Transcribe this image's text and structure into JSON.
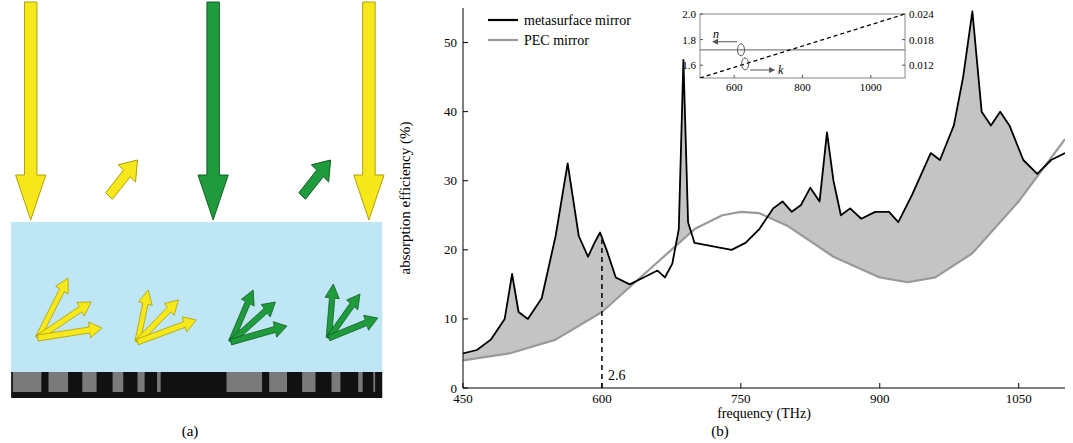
{
  "diagram": {
    "label": "(a)"
  },
  "chart_data": [
    {
      "type": "line",
      "panel_label": "(b)",
      "x_label": "frequency (THz)",
      "y_label": "absorption efficiency (%)",
      "xlim": [
        450,
        1100
      ],
      "ylim": [
        0,
        55
      ],
      "xticks": [
        450,
        600,
        750,
        900,
        1050
      ],
      "yticks": [
        0,
        10,
        20,
        30,
        40,
        50
      ],
      "legend": "upper left",
      "series": [
        {
          "name": "metasurface mirror",
          "color": "#000000",
          "line_style": "solid",
          "x": [
            450,
            465,
            480,
            495,
            503,
            510,
            520,
            535,
            550,
            563,
            575,
            585,
            592,
            598,
            605,
            615,
            630,
            645,
            660,
            668,
            676,
            683,
            688,
            693,
            700,
            720,
            740,
            755,
            770,
            785,
            795,
            805,
            815,
            825,
            835,
            843,
            850,
            858,
            868,
            880,
            895,
            910,
            920,
            935,
            955,
            965,
            980,
            990,
            1000,
            1010,
            1020,
            1030,
            1040,
            1055,
            1070,
            1085,
            1100
          ],
          "values": [
            5,
            5.5,
            7,
            10,
            16.5,
            11,
            10,
            13,
            22,
            32.5,
            22,
            19,
            21,
            22.5,
            20,
            16,
            15,
            16,
            17,
            16,
            18,
            23,
            47.5,
            24,
            21,
            20.5,
            20,
            21,
            23,
            26,
            27,
            25.5,
            26.5,
            29,
            27,
            37,
            30,
            25,
            26,
            24.5,
            25.5,
            25.5,
            24,
            28,
            34,
            33,
            38,
            45,
            54.5,
            40,
            38,
            40,
            38,
            33,
            31,
            33,
            34
          ]
        },
        {
          "name": "PEC mirror",
          "color": "#999999",
          "line_style": "solid",
          "x": [
            450,
            500,
            550,
            600,
            650,
            700,
            730,
            750,
            770,
            800,
            850,
            900,
            930,
            960,
            1000,
            1050,
            1100
          ],
          "values": [
            4,
            5,
            7,
            11,
            17,
            23,
            25,
            25.5,
            25.3,
            23.5,
            19,
            16,
            15.3,
            16,
            19.5,
            27,
            36
          ]
        }
      ],
      "annotations": [
        {
          "text": "2.6",
          "x": 600,
          "y": 21.5
        }
      ]
    },
    {
      "type": "line",
      "xlim": [
        500,
        1100
      ],
      "xticks": [
        600,
        800,
        1000
      ],
      "ylim": [
        1.5,
        2.0
      ],
      "yticks": [
        1.6,
        1.8,
        {
          "value": 2,
          "label": "2.0"
        }
      ],
      "y2lim": [
        0.009,
        0.024
      ],
      "y2ticks": [
        0.012,
        0.018,
        0.024
      ],
      "series": [
        {
          "name": "n",
          "color": "#808080",
          "line_style": "solid",
          "x": [
            500,
            800,
            1100
          ],
          "values": [
            1.72,
            1.72,
            1.72
          ]
        },
        {
          "name": "k",
          "color": "#000000",
          "line_style": "dashed",
          "axis": "y2",
          "x": [
            500,
            800,
            1100
          ],
          "values": [
            0.009,
            0.0165,
            0.024
          ]
        }
      ]
    }
  ]
}
